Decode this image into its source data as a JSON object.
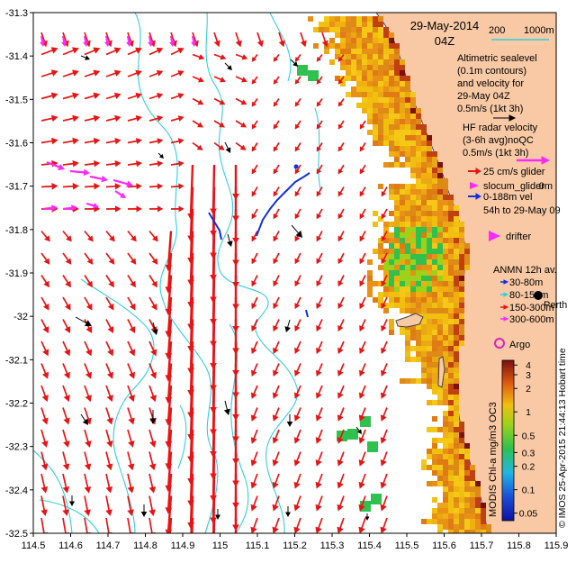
{
  "colors": {
    "land": "#f8c9a4",
    "coast": "#444444",
    "contour": "#2fd0dd",
    "hf_vector": "#e81414",
    "altimetry_vector": "#000000",
    "glider": "#ff28ff",
    "mooring": "#1030e0",
    "argo": "#e020c0"
  },
  "chart_data": {
    "type": "map",
    "x_ticks": [
      "114.5",
      "114.6",
      "114.7",
      "114.8",
      "114.9",
      "115",
      "115.1",
      "115.2",
      "115.3",
      "115.4",
      "115.5",
      "115.6",
      "115.7",
      "115.8",
      "115.9"
    ],
    "y_ticks": [
      "-31.3",
      "-31.4",
      "-31.5",
      "-31.6",
      "-31.7",
      "-31.8",
      "-31.9",
      "-32",
      "-32.1",
      "-32.2",
      "-32.3",
      "-32.4",
      "-32.5"
    ],
    "xlim": [
      114.5,
      115.9
    ],
    "ylim": [
      -32.5,
      -31.3
    ],
    "colorbar": {
      "label": "MODIS Chl-a mg/m3 OC3",
      "ticks": [
        "4",
        "3",
        "2",
        "1",
        "0.5",
        "0.3",
        "0.2",
        "0.1",
        "0.05"
      ],
      "scale": "log"
    },
    "credit": "© IMOS 25-Apr-2015 21:44:13 Hobart time"
  },
  "title": {
    "date": "29-May-2014",
    "time": "04Z",
    "depth_scale_left": "200",
    "depth_scale_right": "1000m"
  },
  "legend": {
    "alt_lines": [
      "Altimetric sealevel",
      "(0.1m contours)",
      "and velocity for",
      "29-May 04Z",
      "0.5m/s (1kt 3h)"
    ],
    "hf_lines": [
      "HF radar velocity",
      "(3-6h avg)noQC",
      "0.5m/s (1kt 3h)"
    ],
    "glider_speed": "25 cm/s glider",
    "slocum": "slocum_glider",
    "slocum_depth": "0m",
    "glider_vel": "0-188m vel",
    "glider_time": "54h to 29-May 09",
    "drifter": "drifter",
    "anmn_title": "ANMN 12h av.",
    "anmn_items": [
      "30-80m",
      "80-150m",
      "150-300m",
      "300-600m"
    ],
    "perth": "Perth",
    "argo": "Argo"
  }
}
